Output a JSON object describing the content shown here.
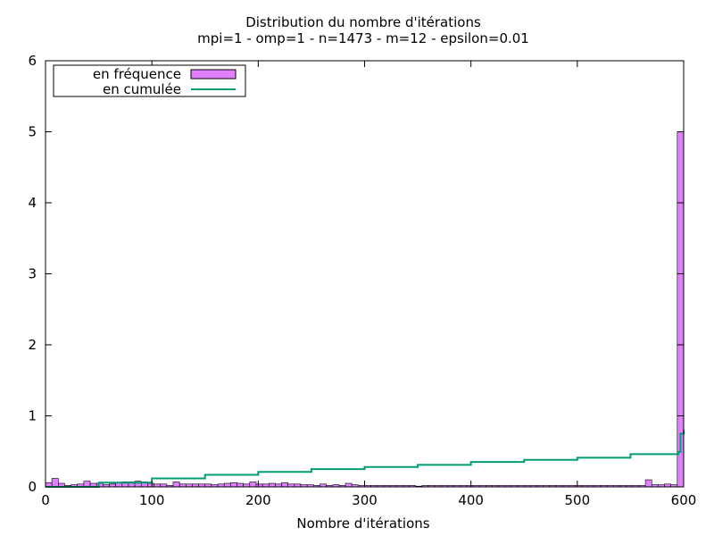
{
  "chart_data": {
    "type": "bar",
    "title": "Distribution du nombre d'itérations",
    "subtitle": "mpi=1 - omp=1 - n=1473 - m=12 - epsilon=0.01",
    "xlabel": "Nombre d'itérations",
    "ylabel": "",
    "xlim": [
      0,
      600
    ],
    "ylim": [
      0,
      6
    ],
    "x_ticks": [
      0,
      100,
      200,
      300,
      400,
      500,
      600
    ],
    "y_ticks": [
      0,
      1,
      2,
      3,
      4,
      5,
      6
    ],
    "grid": false,
    "legend_position": "top-left",
    "bin_width": 6,
    "series": [
      {
        "name": "en fréquence",
        "kind": "histogram",
        "color": "#e080ff",
        "values": [
          0.06,
          0.12,
          0.05,
          0.02,
          0.03,
          0.04,
          0.08,
          0.05,
          0.05,
          0.03,
          0.04,
          0.06,
          0.07,
          0.07,
          0.08,
          0.07,
          0.05,
          0.04,
          0.04,
          0.02,
          0.07,
          0.04,
          0.04,
          0.04,
          0.04,
          0.04,
          0.03,
          0.04,
          0.05,
          0.06,
          0.05,
          0.04,
          0.07,
          0.04,
          0.04,
          0.05,
          0.04,
          0.06,
          0.04,
          0.04,
          0.03,
          0.03,
          0.02,
          0.04,
          0.02,
          0.03,
          0.02,
          0.05,
          0.03,
          0.02,
          0.02,
          0.02,
          0.02,
          0.02,
          0.02,
          0.02,
          0.02,
          0.02,
          0.01,
          0.02,
          0.02,
          0.02,
          0.02,
          0.02,
          0.02,
          0.02,
          0.02,
          0.02,
          0.02,
          0.02,
          0.02,
          0.02,
          0.02,
          0.02,
          0.02,
          0.02,
          0.02,
          0.02,
          0.02,
          0.02,
          0.02,
          0.02,
          0.02,
          0.02,
          0.02,
          0.02,
          0.02,
          0.02,
          0.02,
          0.02,
          0.02,
          0.02,
          0.02,
          0.02,
          0.1,
          0.03,
          0.03,
          0.04,
          0.03,
          5.0
        ]
      },
      {
        "name": "en cumulée",
        "kind": "step",
        "color": "#009e73",
        "x": [
          0,
          50,
          100,
          150,
          200,
          250,
          300,
          350,
          400,
          450,
          500,
          550,
          595,
          597,
          600
        ],
        "values": [
          0.0,
          0.06,
          0.12,
          0.17,
          0.21,
          0.25,
          0.28,
          0.31,
          0.35,
          0.38,
          0.41,
          0.46,
          0.49,
          0.75,
          0.8
        ]
      }
    ]
  }
}
